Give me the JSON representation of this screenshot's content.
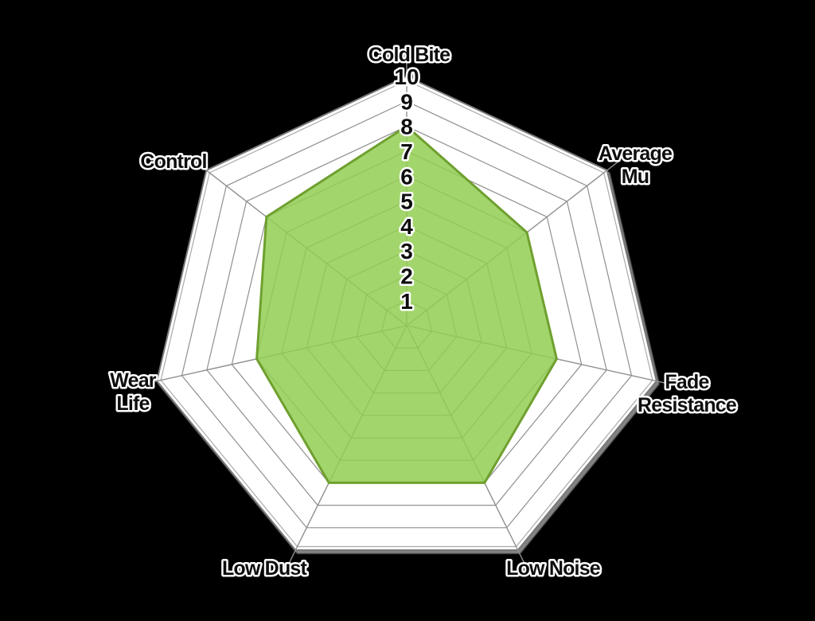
{
  "page": {
    "background_color": "#000000"
  },
  "chart_data": {
    "type": "radar",
    "shape": "heptagon",
    "axes_count": 7,
    "categories": [
      "Cold Bite",
      "Average Mu",
      "Fade Resistance",
      "Low Noise",
      "Low Dust",
      "Wear Life",
      "Control"
    ],
    "axis_label_lines": [
      [
        "Cold Bite"
      ],
      [
        "Average",
        "Mu"
      ],
      [
        "Fade",
        "Resistance"
      ],
      [
        "Low Noise"
      ],
      [
        "Low Dust"
      ],
      [
        "Wear",
        "Life"
      ],
      [
        "Control"
      ]
    ],
    "values": [
      8,
      6,
      6,
      7,
      7,
      6,
      7
    ],
    "scale": {
      "min": 0,
      "max": 10,
      "rings": 10,
      "tick_labels": [
        "1",
        "2",
        "3",
        "4",
        "5",
        "6",
        "7",
        "8",
        "9",
        "10"
      ]
    },
    "legend": "none",
    "grid": "on",
    "colors": {
      "background": "#000000",
      "ring_fill": "#ffffff",
      "grid_line": "#8f8f8f",
      "outer_border": "#787878",
      "outer_shadow": "#8a8a8a",
      "inner_echo_line": "#aaaaaa",
      "series_fill": "#93ce54",
      "series_fill_opacity": 0.85,
      "series_stroke": "#6fa02f",
      "label_fill": "#0d0d0d",
      "label_halo": "#ffffff"
    }
  }
}
